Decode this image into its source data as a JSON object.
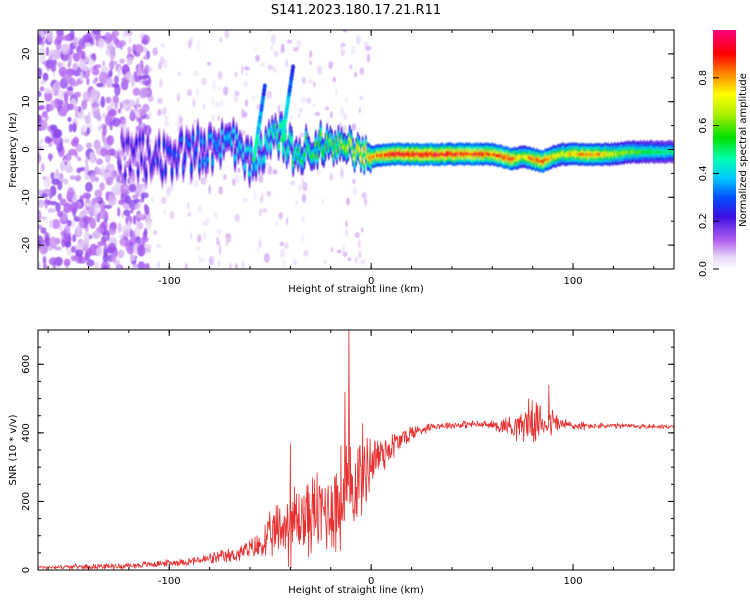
{
  "title": "S141.2023.180.17.21.R11",
  "chart_data": [
    {
      "type": "heatmap",
      "xlabel": "Height of straight line (km)",
      "ylabel": "Frequency (Hz)",
      "xlim": [
        -165,
        150
      ],
      "ylim": [
        -25,
        25
      ],
      "xticks": [
        -100,
        0,
        100
      ],
      "yticks": [
        -20,
        -10,
        0,
        10,
        20
      ],
      "colorbar": {
        "label": "Normalized spectral amplitude",
        "range": [
          0,
          1
        ],
        "ticks": [
          "0.0",
          "0.2",
          "0.4",
          "0.6",
          "0.8"
        ],
        "tick_values": [
          0,
          0.2,
          0.4,
          0.6,
          0.8
        ]
      },
      "ridge": {
        "x": [
          -125,
          -110,
          -95,
          -80,
          -70,
          -62,
          -52,
          -45,
          -38,
          -30,
          -25,
          -20,
          -15,
          -10,
          -5,
          0,
          10,
          20,
          30,
          40,
          50,
          60,
          65,
          70,
          75,
          80,
          85,
          90,
          95,
          100,
          110,
          120,
          130,
          140,
          150
        ],
        "freq": [
          -1,
          -1.5,
          -1,
          0.5,
          2,
          -3,
          1,
          3,
          -1,
          0.5,
          1,
          1.5,
          0,
          0.5,
          -1,
          -1.5,
          -1,
          -1,
          -1,
          -1,
          -1,
          -1,
          -1.5,
          -2,
          -1.5,
          -2,
          -2.5,
          -1.5,
          -1,
          -1,
          -1,
          -1,
          -0.5,
          -0.5,
          -0.5
        ],
        "amplitude": [
          0.2,
          0.25,
          0.3,
          0.35,
          0.4,
          0.4,
          0.45,
          0.5,
          0.5,
          0.55,
          0.6,
          0.6,
          0.65,
          0.7,
          0.75,
          0.8,
          0.92,
          0.95,
          0.95,
          0.93,
          0.9,
          0.85,
          0.9,
          0.9,
          0.7,
          0.85,
          0.9,
          0.75,
          0.7,
          0.8,
          0.85,
          0.7,
          0.6,
          0.55,
          0.5
        ]
      }
    },
    {
      "type": "line",
      "xlabel": "Height of straight line (km)",
      "ylabel": "SNR (10 * v/v)",
      "xlim": [
        -165,
        150
      ],
      "ylim": [
        0,
        700
      ],
      "xticks": [
        -100,
        0,
        100
      ],
      "yticks": [
        0,
        200,
        400,
        600
      ],
      "color": "#e83030",
      "trend": {
        "x": [
          -165,
          -120,
          -90,
          -70,
          -55,
          -45,
          -35,
          -25,
          -15,
          -10,
          -5,
          0,
          10,
          20,
          30,
          50,
          70,
          80,
          90,
          100,
          120,
          150
        ],
        "snr": [
          8,
          12,
          25,
          40,
          70,
          120,
          150,
          170,
          200,
          240,
          280,
          320,
          360,
          400,
          420,
          425,
          420,
          430,
          430,
          420,
          420,
          418
        ]
      },
      "spread": {
        "x": [
          -165,
          -90,
          -60,
          -48,
          -40,
          -30,
          -20,
          -12,
          -5,
          5,
          15,
          30,
          60,
          70,
          80,
          90,
          95,
          110,
          150
        ],
        "amp": [
          6,
          14,
          35,
          90,
          150,
          140,
          170,
          220,
          160,
          80,
          40,
          12,
          15,
          45,
          70,
          50,
          25,
          10,
          8
        ]
      },
      "peaks": [
        {
          "x": -11,
          "snr": 700
        },
        {
          "x": -13,
          "snr": 520
        },
        {
          "x": -40,
          "snr": 370
        },
        {
          "x": 88,
          "snr": 540
        },
        {
          "x": 78,
          "snr": 500
        }
      ]
    }
  ]
}
